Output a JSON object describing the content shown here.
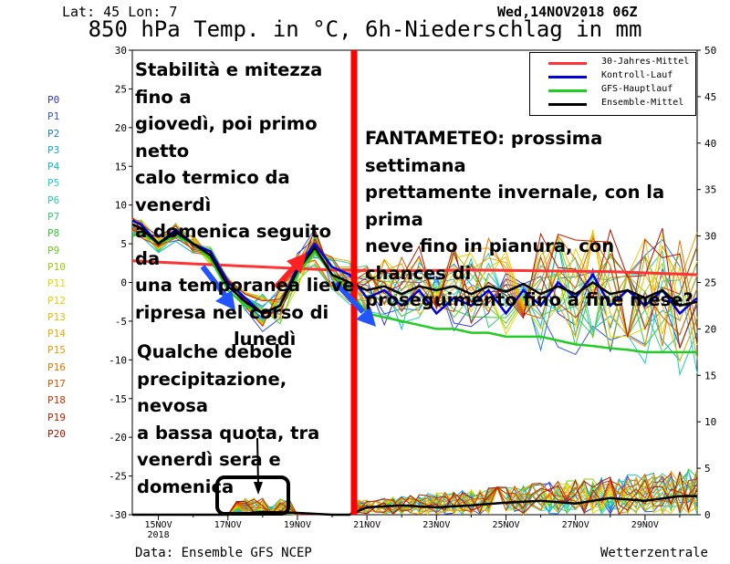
{
  "header": {
    "location": "Lat: 45 Lon: 7",
    "run": "Wed,14NOV2018 06Z",
    "title": "850 hPa Temp. in °C, 6h-Niederschlag in mm"
  },
  "footer": {
    "source": "Data: Ensemble GFS NCEP",
    "brand": "Wetterzentrale"
  },
  "members": [
    "P0",
    "P1",
    "P2",
    "P3",
    "P4",
    "P5",
    "P6",
    "P7",
    "P8",
    "P9",
    "P10",
    "P11",
    "P12",
    "P13",
    "P14",
    "P15",
    "P16",
    "P17",
    "P18",
    "P19",
    "P20"
  ],
  "member_colors": [
    "#3333cc",
    "#3355dd",
    "#2277dd",
    "#11aacc",
    "#11bbbb",
    "#22cccc",
    "#22ccaa",
    "#33cc77",
    "#33cc33",
    "#66cc22",
    "#99cc11",
    "#dddd00",
    "#eecc00",
    "#eebb00",
    "#eeaa00",
    "#ee9900",
    "#dd7700",
    "#dd5500",
    "#cc3300",
    "#bb2200",
    "#aa1100"
  ],
  "annotations": {
    "top_left": [
      "Stabilità e mitezza fino a",
      "giovedì, poi primo netto",
      "calo termico da venerdì",
      "a domenica seguito da",
      "una temporanea lieve",
      "ripresa nel corso di",
      "lunedì"
    ],
    "top_right": [
      "FANTAMETEO: prossima settimana",
      "prettamente invernale, con la prima",
      "neve fino in pianura, con chances di",
      "proseguimento fino a fine mese?"
    ],
    "bottom_left": [
      "Qualche debole",
      "precipitazione, nevosa",
      "a bassa quota, tra",
      "venerdì sera e domenica"
    ]
  },
  "chart_data": {
    "type": "line",
    "title": "850 hPa Temp. in °C, 6h-Niederschlag in mm",
    "x_tick_labels": [
      "15NOV",
      "17NOV",
      "19NOV",
      "21NOV",
      "23NOV",
      "25NOV",
      "27NOV",
      "29NOV"
    ],
    "x_tick_year": "2018",
    "y_left": {
      "label": "°C",
      "range": [
        -30,
        30
      ],
      "ticks": [
        30,
        25,
        20,
        15,
        10,
        5,
        0,
        -5,
        -10,
        -15,
        -20,
        -25,
        -30
      ]
    },
    "y_right": {
      "label": "mm",
      "range": [
        0,
        50
      ],
      "ticks": [
        50,
        45,
        40,
        35,
        30,
        25,
        20,
        15,
        10,
        5,
        0
      ]
    },
    "x_days_range": [
      14.25,
      30.5
    ],
    "legend": {
      "position": "top-right",
      "items": [
        {
          "name": "30-Jahres-Mittel",
          "color": "#ff3333"
        },
        {
          "name": "Kontroll-Lauf",
          "color": "#0000dd"
        },
        {
          "name": "GFS-Hauptlauf",
          "color": "#22cc22"
        },
        {
          "name": "Ensemble-Mittel",
          "color": "#000000"
        }
      ]
    },
    "series": [
      {
        "name": "30-Jahres-Mittel",
        "color": "#ff3333",
        "axis": "left",
        "x": [
          14.25,
          16,
          18,
          20,
          22,
          24,
          26,
          28,
          30.5
        ],
        "y": [
          2.8,
          2.4,
          2.0,
          1.6,
          1.5,
          1.6,
          1.5,
          1.4,
          1.0
        ]
      },
      {
        "name": "Kontroll-Lauf",
        "color": "#0000dd",
        "axis": "left",
        "x": [
          14.25,
          14.5,
          15,
          15.5,
          16,
          16.5,
          17,
          17.5,
          18,
          18.5,
          19,
          19.5,
          20,
          20.5,
          21,
          21.5,
          22,
          22.5,
          23,
          23.5,
          24,
          24.5,
          25,
          25.5,
          26,
          26.5,
          27,
          27.5,
          28,
          28.5,
          29,
          29.5,
          30,
          30.5
        ],
        "y": [
          8,
          7.5,
          5,
          6.8,
          5,
          4,
          0,
          -2,
          -4,
          -3,
          2,
          5,
          2,
          1,
          -2,
          -1,
          -3,
          -1,
          -4,
          -2,
          -3,
          -1,
          -4,
          -1,
          -3,
          0,
          -2,
          1,
          -3,
          -1,
          -3,
          -1,
          -4,
          -2
        ]
      },
      {
        "name": "GFS-Hauptlauf",
        "color": "#22cc22",
        "axis": "left",
        "x": [
          14.25,
          14.5,
          15,
          15.5,
          16,
          16.5,
          17,
          17.5,
          18,
          18.5,
          19,
          19.5,
          20,
          20.5,
          21,
          21.5,
          22,
          22.5,
          23,
          23.5,
          24,
          24.5,
          25,
          25.5,
          26,
          26.5,
          27,
          27.5,
          28,
          28.5,
          29,
          29.5,
          30,
          30.5
        ],
        "y": [
          6,
          6.5,
          5,
          6,
          5,
          3,
          -1,
          -3,
          -4,
          -3,
          1,
          4,
          1,
          -1,
          -4,
          -4.5,
          -5,
          -5.5,
          -6,
          -6,
          -6.5,
          -6.5,
          -7,
          -7,
          -7,
          -7.5,
          -8,
          -8.2,
          -8.5,
          -8.7,
          -9,
          -9,
          -9,
          -9
        ]
      },
      {
        "name": "Ensemble-Mittel",
        "color": "#000000",
        "axis": "left",
        "x": [
          14.25,
          14.5,
          15,
          15.5,
          16,
          16.5,
          17,
          17.5,
          18,
          18.5,
          19,
          19.5,
          20,
          20.5,
          21,
          21.5,
          22,
          22.5,
          23,
          23.5,
          24,
          24.5,
          25,
          25.5,
          26,
          26.5,
          27,
          27.5,
          28,
          28.5,
          29,
          29.5,
          30,
          30.5
        ],
        "y": [
          7.5,
          7,
          5,
          6.5,
          5,
          3.5,
          -0.5,
          -2.5,
          -4,
          -3,
          1.5,
          4.5,
          1,
          0,
          -1,
          -0.5,
          -1.5,
          -0.5,
          -1,
          -0.5,
          -1.5,
          -0.5,
          -1.2,
          -0.2,
          -1.5,
          -0.5,
          -1.5,
          0,
          -1.5,
          -1,
          -2,
          -1,
          -3,
          -2.5
        ]
      },
      {
        "name": "Ensemble-Mittel (precip)",
        "color": "#000000",
        "axis": "right",
        "x": [
          14.25,
          17,
          18,
          19,
          20,
          20.5,
          21,
          22,
          23,
          24,
          25,
          26,
          27,
          28,
          29,
          30,
          30.5
        ],
        "y": [
          0,
          0,
          0.3,
          0.2,
          0,
          0,
          0.8,
          1.0,
          0.8,
          1.0,
          1.3,
          1.5,
          1.2,
          1.8,
          1.5,
          2.0,
          2.0
        ]
      }
    ]
  }
}
